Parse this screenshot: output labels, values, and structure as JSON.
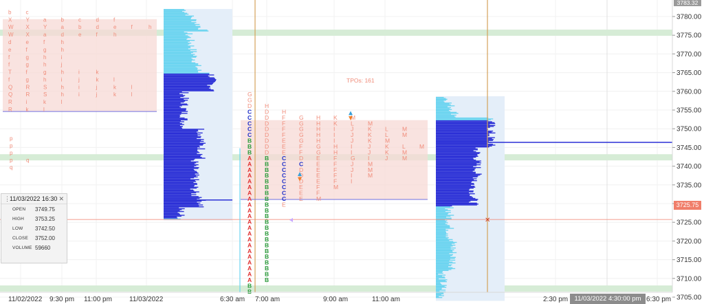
{
  "chart_data": {
    "type": "market-profile",
    "price_axis": {
      "ylim": [
        3702.5,
        3784.0
      ],
      "ticks": [
        "3705.00",
        "3710.00",
        "3715.00",
        "3720.00",
        "3725.00",
        "3730.00",
        "3735.00",
        "3740.00",
        "3745.00",
        "3750.00",
        "3755.00",
        "3760.00",
        "3765.00",
        "3770.00",
        "3775.00",
        "3780.00"
      ],
      "current_price": "3725.75",
      "top_label": "3783.32"
    },
    "time_axis": {
      "labels": [
        "11/02/2022",
        "9:30 pm",
        "11:00 pm",
        "11/03/2022",
        "6:30 am",
        "7:00 am",
        "9:00 am",
        "11:00 am",
        "2:30 pm",
        "6:30 pm"
      ],
      "cursor_label": "11/03/2022 4:30:00 pm"
    },
    "annotations": {
      "tpo_count": "TPOs: 161"
    },
    "overnight_profile": {
      "rows": [
        [
          "b",
          "c"
        ],
        [
          "X",
          "Y",
          "a",
          "b",
          "c",
          "d",
          "f"
        ],
        [
          "W",
          "X",
          "Y",
          "a",
          "b",
          "d",
          "e",
          "f",
          "h"
        ],
        [
          "W",
          "X",
          "a",
          "d",
          "e",
          "f",
          "h"
        ],
        [
          "d",
          "e",
          "f",
          "h"
        ],
        [
          "e",
          "f",
          "g",
          "h"
        ],
        [
          "f",
          "g",
          "h",
          "i"
        ],
        [
          "f",
          "g",
          "h",
          "j"
        ],
        [
          "T",
          "f",
          "g",
          "h",
          "i",
          "k"
        ],
        [
          "f",
          "g",
          "h",
          "i",
          "j",
          "k",
          "l"
        ],
        [
          "Q",
          "R",
          "S",
          "h",
          "i",
          "j",
          "k",
          "l"
        ],
        [
          "Q",
          "R",
          "S",
          "h",
          "i",
          "j",
          "k",
          "l"
        ],
        [
          "R",
          "i",
          "k",
          "l"
        ],
        [
          "R",
          "k",
          "l"
        ]
      ],
      "lower_rows": [
        [
          "p"
        ],
        [
          "p"
        ],
        [
          "p"
        ],
        [
          "p",
          "q"
        ],
        [
          "q"
        ]
      ]
    },
    "rth_profile": {
      "rows": [
        [
          "G"
        ],
        [
          "G"
        ],
        [
          "D",
          "H"
        ],
        [
          "C",
          "D",
          "H"
        ],
        [
          "C",
          "D",
          "F",
          "G",
          "H",
          "K",
          "M"
        ],
        [
          "C",
          "D",
          "F",
          "G",
          "H",
          "K",
          "L",
          "M"
        ],
        [
          "C",
          "D",
          "F",
          "G",
          "H",
          "I",
          "J",
          "K",
          "L",
          "M"
        ],
        [
          "C",
          "D",
          "F",
          "G",
          "H",
          "I",
          "J",
          "K",
          "L",
          "M"
        ],
        [
          "B",
          "D",
          "E",
          "G",
          "H",
          "I",
          "J",
          "K",
          "M"
        ],
        [
          "B",
          "D",
          "E",
          "F",
          "G",
          "H",
          "I",
          "J",
          "K",
          "L",
          "M"
        ],
        [
          "B",
          "D",
          "E",
          "F",
          "G",
          "H",
          "I",
          "J",
          "K",
          "M"
        ],
        [
          "A",
          "B",
          "C",
          "D",
          "E",
          "F",
          "G",
          "I",
          "J",
          "M"
        ],
        [
          "A",
          "B",
          "C",
          "C",
          "E",
          "F",
          "J",
          "M"
        ],
        [
          "A",
          "B",
          "C",
          "D",
          "E",
          "F",
          "J",
          "M"
        ],
        [
          "A",
          "B",
          "C",
          "D",
          "E",
          "F",
          "I",
          "M"
        ],
        [
          "A",
          "B",
          "C",
          "D",
          "E",
          "F",
          "I"
        ],
        [
          "A",
          "B",
          "C",
          "E",
          "F",
          "M"
        ],
        [
          "A",
          "B",
          "C",
          "E",
          "F"
        ],
        [
          "A",
          "B",
          "C",
          "E",
          "M"
        ],
        [
          "A",
          "B",
          "E"
        ],
        [
          "A",
          "B"
        ],
        [
          "A",
          "B"
        ],
        [
          "A",
          "B"
        ],
        [
          "A",
          "B"
        ],
        [
          "A",
          "B"
        ],
        [
          "A",
          "B"
        ],
        [
          "A",
          "B"
        ],
        [
          "A",
          "B"
        ],
        [
          "A",
          "B"
        ],
        [
          "A",
          "B"
        ],
        [
          "A",
          "B"
        ],
        [
          "A",
          "B"
        ],
        [
          "A",
          "B"
        ],
        [
          "B"
        ],
        [
          "B"
        ]
      ]
    },
    "colors": {
      "letters_light": "#f08c7a",
      "letter_A": "#e03030",
      "letter_B": "#2a9a3a",
      "letter_C": "#2030c8",
      "value_area": "#f7d9d6",
      "volume_dark": "#2a2fd6",
      "volume_light": "#6ad4f0",
      "profile_bg": "#e4eef9",
      "highlight_band": "#d6ecd6",
      "session_line": "#d4a25a",
      "current_price_line": "#f07e6a"
    }
  },
  "ohlc_panel": {
    "timestamp": "11/03/2022 16:30",
    "open_label": "OPEN",
    "open": "3749.75",
    "high_label": "HIGH",
    "high": "3753.25",
    "low_label": "LOW",
    "low": "3742.50",
    "close_label": "CLOSE",
    "close": "3752.00",
    "volume_label": "VOLUME",
    "volume": "59660",
    "close_icon": "close-icon",
    "drag_icon": "drag-handle-icon"
  }
}
